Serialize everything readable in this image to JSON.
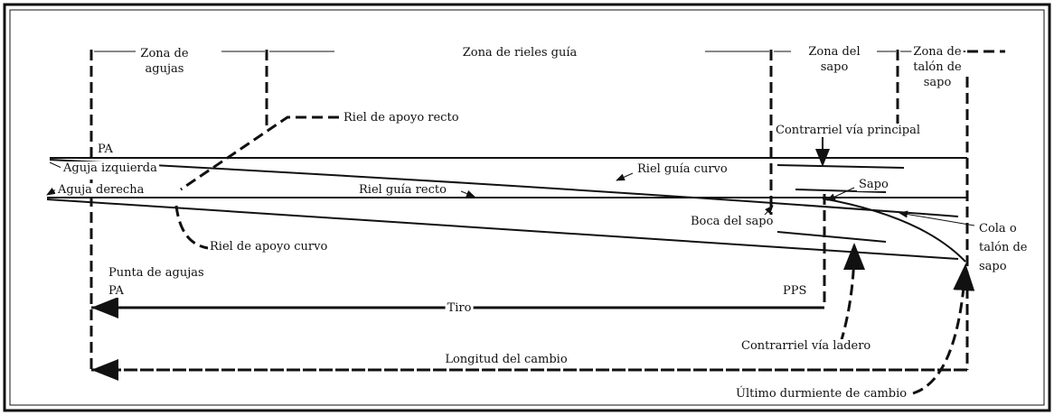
{
  "zones": {
    "needles": [
      "Zona de",
      "agujas"
    ],
    "guide_rails": "Zona de rieles  guía",
    "frog": [
      "Zona del",
      "sapo"
    ],
    "frog_heel": [
      "Zona de",
      "talón de",
      "sapo"
    ]
  },
  "labels": {
    "straight_stock_rail": "Riel de apoyo recto",
    "main_check_rail": "Contrarriel vía principal",
    "pa_top": "PA",
    "left_needle": "Aguja izquierda",
    "curved_guide_rail": "Riel guía curvo",
    "right_needle": "Aguja derecha",
    "straight_guide_rail": "Riel guía recto",
    "frog": "Sapo",
    "frog_mouth": "Boca del sapo",
    "curved_stock_rail": "Riel de apoyo curvo",
    "frog_tail": [
      "Cola o",
      "talón de",
      "sapo"
    ],
    "needle_point": "Punta de agujas",
    "pa_bottom": "PA",
    "pps": "PPS",
    "lead": "Tiro",
    "siding_check_rail": "Contrarriel vía ladero",
    "turnout_length": "Longitud del cambio",
    "last_tie": "Último durmiente de cambio"
  }
}
